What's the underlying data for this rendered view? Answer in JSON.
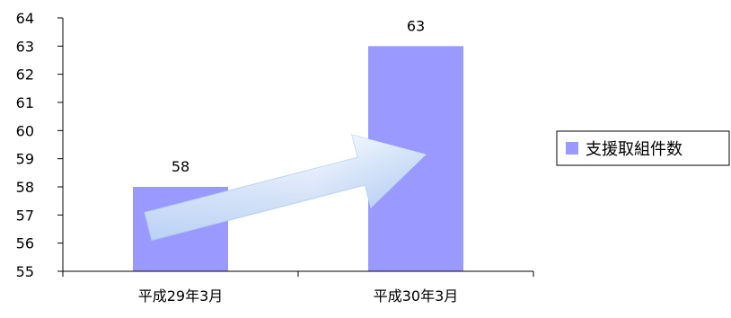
{
  "chart_data": {
    "type": "bar",
    "categories": [
      "平成29年3月",
      "平成30年3月"
    ],
    "series": [
      {
        "name": "支援取組件数",
        "values": [
          58,
          63
        ]
      }
    ],
    "ylim": [
      55,
      64
    ],
    "yticks": [
      55,
      56,
      57,
      58,
      59,
      60,
      61,
      62,
      63,
      64
    ],
    "grid": false,
    "legend": "right",
    "bar_color": "#9999ff",
    "data_labels": true,
    "annotation": "trend-arrow"
  }
}
